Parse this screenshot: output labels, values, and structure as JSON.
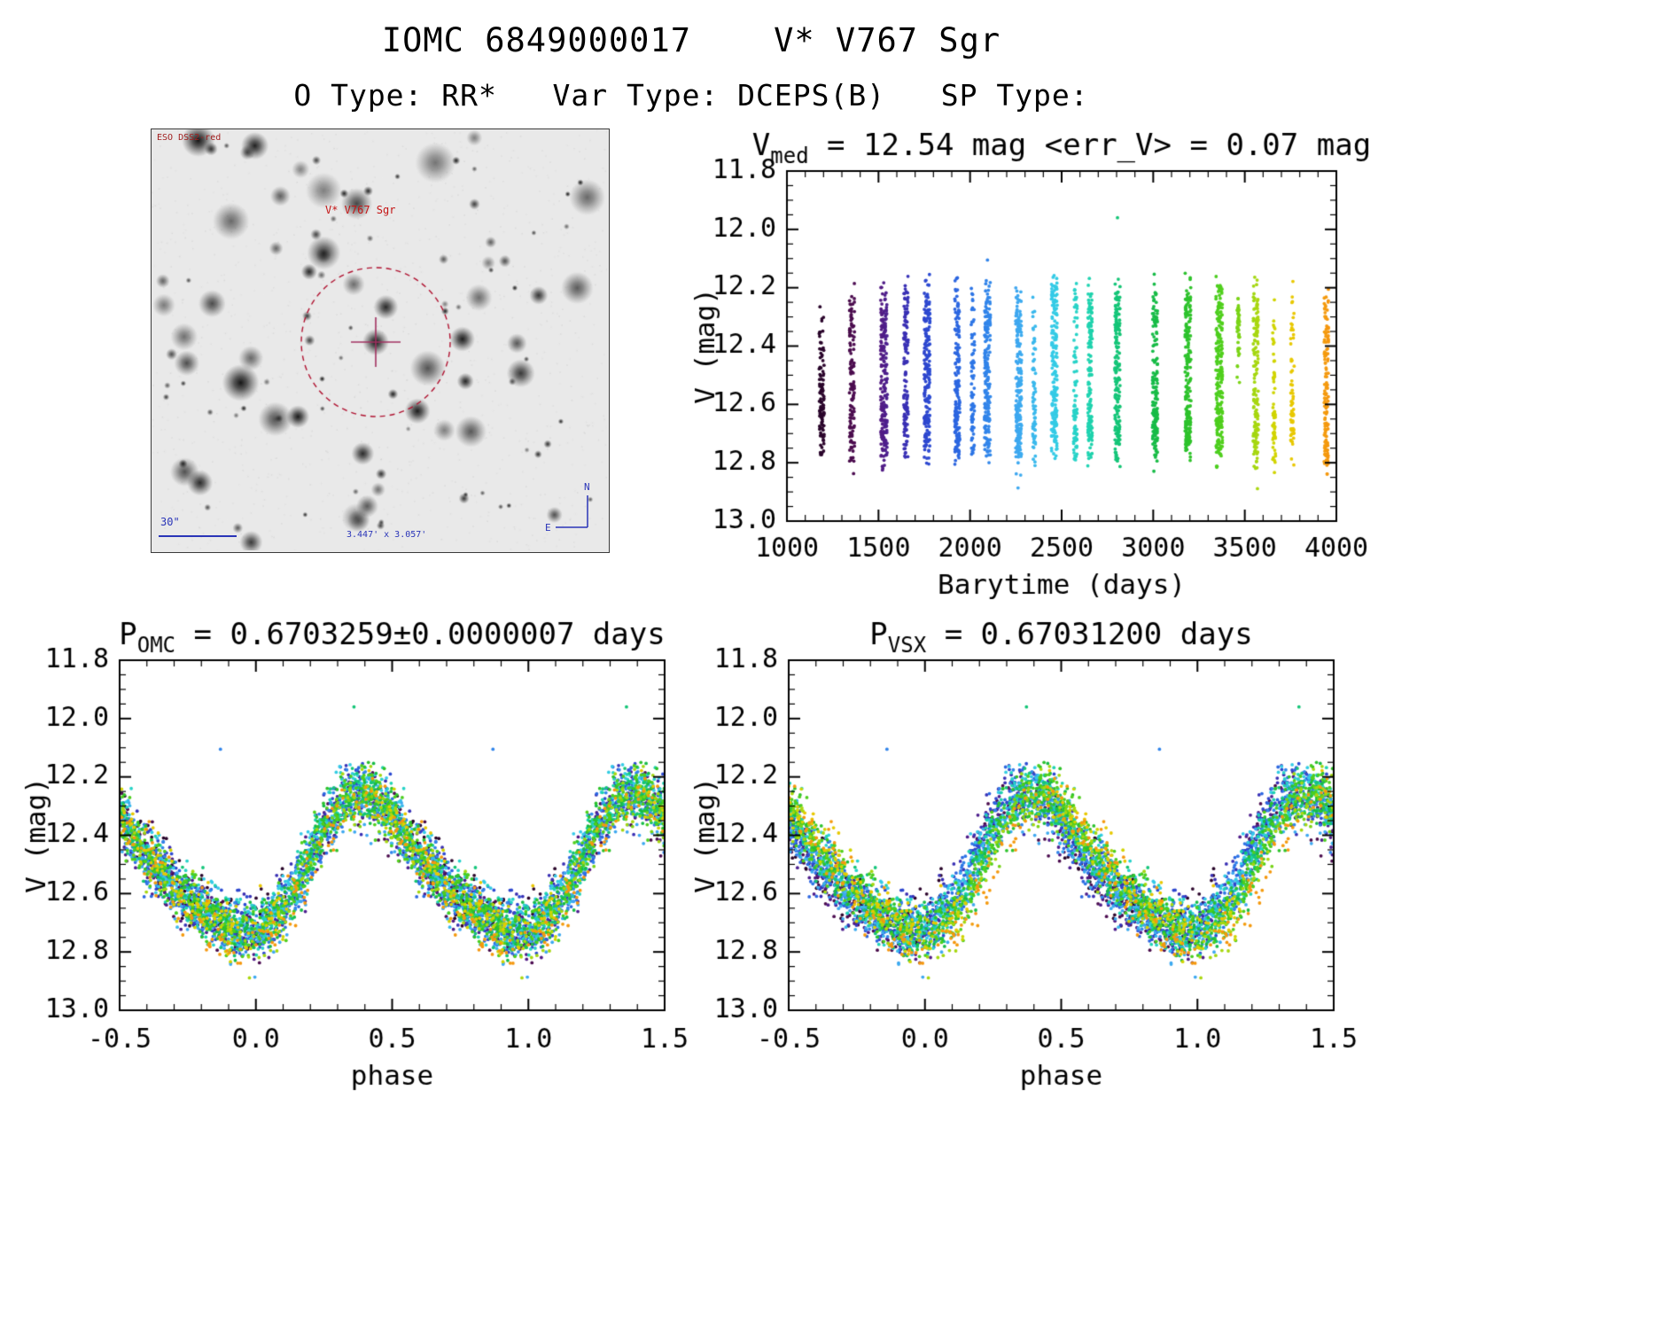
{
  "page": {
    "title": "IOMC 6849000017    V* V767 Sgr",
    "subtitle": "O Type: RR*   Var Type: DCEPS(B)   SP Type:"
  },
  "finder": {
    "survey_label": "ESO DSS2-red",
    "star_label": "V* V767 Sgr",
    "scale_label": "30\"",
    "fov_label": "3.447' x 3.057'",
    "compass": {
      "north": "N",
      "east": "E"
    },
    "marker_color": "#b01230",
    "crosshair_color": "#a03060",
    "annotation_color": "#2a35b8",
    "star_count": 110,
    "seed": 11
  },
  "chart_data": [
    {
      "id": "time",
      "type": "scatter",
      "title_parts": [
        {
          "t": "V"
        },
        {
          "t": "med",
          "sub": true
        },
        {
          "t": " = 12.54 mag <err_V> = 0.07 mag"
        }
      ],
      "v_med_mag": 12.54,
      "err_v_mag": 0.07,
      "xlabel": "Barytime (days)",
      "ylabel": "V (mag)",
      "xlim": [
        1000,
        4000
      ],
      "ylim": [
        11.8,
        13.0
      ],
      "y_inverted": true,
      "xticks": [
        1000,
        1500,
        2000,
        2500,
        3000,
        3500,
        4000
      ],
      "xtick_labels": [
        "1000",
        "1500",
        "2000",
        "2500",
        "3000",
        "3500",
        "4000"
      ],
      "yticks": [
        11.8,
        12.0,
        12.2,
        12.4,
        12.6,
        12.8,
        13.0
      ],
      "ytick_labels": [
        "11.8",
        "12.0",
        "12.2",
        "12.4",
        "12.6",
        "12.8",
        "13.0"
      ],
      "x_minor": 100,
      "y_minor": 0.05
    },
    {
      "id": "omc",
      "type": "scatter",
      "title_parts": [
        {
          "t": "P"
        },
        {
          "t": "OMC",
          "sub": true
        },
        {
          "t": " = 0.6703259±0.0000007 days"
        }
      ],
      "period_days": 0.6703259,
      "period_err_days": 7e-07,
      "xlabel": "phase",
      "ylabel": "V (mag)",
      "xlim": [
        -0.5,
        1.5
      ],
      "ylim": [
        11.8,
        13.0
      ],
      "y_inverted": true,
      "xticks": [
        -0.5,
        0.0,
        0.5,
        1.0,
        1.5
      ],
      "xtick_labels": [
        "-0.5",
        "0.0",
        "0.5",
        "1.0",
        "1.5"
      ],
      "yticks": [
        11.8,
        12.0,
        12.2,
        12.4,
        12.6,
        12.8,
        13.0
      ],
      "ytick_labels": [
        "11.8",
        "12.0",
        "12.2",
        "12.4",
        "12.6",
        "12.8",
        "13.0"
      ],
      "x_minor": 0.1,
      "y_minor": 0.05
    },
    {
      "id": "vsx",
      "type": "scatter",
      "title_parts": [
        {
          "t": "P"
        },
        {
          "t": "VSX",
          "sub": true
        },
        {
          "t": " = 0.67031200 days"
        }
      ],
      "period_days": 0.670312,
      "xlabel": "phase",
      "ylabel": "V (mag)",
      "xlim": [
        -0.5,
        1.5
      ],
      "ylim": [
        11.8,
        13.0
      ],
      "y_inverted": true,
      "xticks": [
        -0.5,
        0.0,
        0.5,
        1.0,
        1.5
      ],
      "xtick_labels": [
        "-0.5",
        "0.0",
        "0.5",
        "1.0",
        "1.5"
      ],
      "yticks": [
        11.8,
        12.0,
        12.2,
        12.4,
        12.6,
        12.8,
        13.0
      ],
      "ytick_labels": [
        "11.8",
        "12.0",
        "12.2",
        "12.4",
        "12.6",
        "12.8",
        "13.0"
      ],
      "x_minor": 0.1,
      "y_minor": 0.05
    }
  ],
  "star_model": {
    "v_mean": 12.515,
    "amp1": 0.23,
    "phase0": 0.415,
    "amp2": 0.04,
    "phase2": 0.9,
    "noise_sigma": 0.048,
    "period_omc_days": 0.6703259,
    "period_vsx_days": 0.670312,
    "seed": 20,
    "clusters": [
      [
        1190,
        110,
        14,
        0.5,
        1.12
      ],
      [
        1355,
        130,
        14,
        0.22,
        1.05
      ],
      [
        1530,
        200,
        18,
        0.18,
        1.12
      ],
      [
        1650,
        130,
        12
      ],
      [
        1765,
        200,
        16
      ],
      [
        1930,
        170,
        14
      ],
      [
        2015,
        80,
        9
      ],
      [
        2095,
        200,
        16
      ],
      [
        2265,
        220,
        16
      ],
      [
        2350,
        70,
        8,
        0.45,
        1.05
      ],
      [
        2460,
        200,
        16
      ],
      [
        2575,
        90,
        10,
        0.3,
        1.1
      ],
      [
        2655,
        150,
        12
      ],
      [
        2805,
        180,
        14
      ],
      [
        3010,
        160,
        14
      ],
      [
        3190,
        200,
        16
      ],
      [
        3360,
        240,
        18
      ],
      [
        3465,
        45,
        7,
        0.22,
        0.62
      ],
      [
        3560,
        150,
        14
      ],
      [
        3660,
        60,
        8,
        0.45,
        1.1
      ],
      [
        3760,
        70,
        10,
        0.4,
        1.12
      ],
      [
        3945,
        130,
        12
      ]
    ],
    "outliers": [
      {
        "t": 2805,
        "phase": 0.36,
        "mag": 11.96
      },
      {
        "t": 2095,
        "phase": 0.87,
        "mag": 12.105
      }
    ],
    "colormap": [
      {
        "t": 1100,
        "c": "#16021c"
      },
      {
        "t": 1300,
        "c": "#43093e"
      },
      {
        "t": 1470,
        "c": "#5c1470"
      },
      {
        "t": 1620,
        "c": "#3c2aae"
      },
      {
        "t": 1800,
        "c": "#2a50d8"
      },
      {
        "t": 2050,
        "c": "#2e7ce8"
      },
      {
        "t": 2250,
        "c": "#3ea6f0"
      },
      {
        "t": 2450,
        "c": "#35cae8"
      },
      {
        "t": 2620,
        "c": "#22d6bc"
      },
      {
        "t": 2800,
        "c": "#14c578"
      },
      {
        "t": 3000,
        "c": "#16bb48"
      },
      {
        "t": 3200,
        "c": "#2fc32a"
      },
      {
        "t": 3380,
        "c": "#52d01c"
      },
      {
        "t": 3560,
        "c": "#a6d710"
      },
      {
        "t": 3680,
        "c": "#d9d400"
      },
      {
        "t": 3780,
        "c": "#ecc503"
      },
      {
        "t": 3960,
        "c": "#f5950f"
      }
    ]
  }
}
